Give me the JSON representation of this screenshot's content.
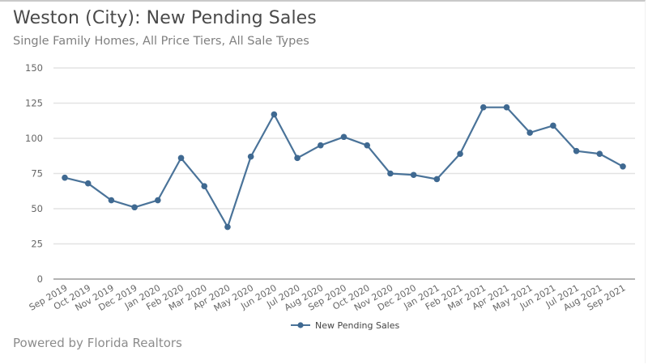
{
  "header": {
    "title": "Weston (City): New Pending Sales",
    "subtitle": "Single Family Homes, All Price Tiers, All Sale Types"
  },
  "footer": {
    "text": "Powered by Florida Realtors"
  },
  "colors": {
    "series": "#4a7399",
    "marker": "#3f6991",
    "grid": "#e3e3e3",
    "axis": "#9a9a9a"
  },
  "chart_data": {
    "type": "line",
    "title": "Weston (City): New Pending Sales",
    "subtitle": "Single Family Homes, All Price Tiers, All Sale Types",
    "xlabel": "",
    "ylabel": "",
    "ylim": [
      0,
      150
    ],
    "yticks": [
      0,
      25,
      50,
      75,
      100,
      125,
      150
    ],
    "grid": true,
    "legend_position": "bottom",
    "categories": [
      "Sep 2019",
      "Oct 2019",
      "Nov 2019",
      "Dec 2019",
      "Jan 2020",
      "Feb 2020",
      "Mar 2020",
      "Apr 2020",
      "May 2020",
      "Jun 2020",
      "Jul 2020",
      "Aug 2020",
      "Sep 2020",
      "Oct 2020",
      "Nov 2020",
      "Dec 2020",
      "Jan 2021",
      "Feb 2021",
      "Mar 2021",
      "Apr 2021",
      "May 2021",
      "Jun 2021",
      "Jul 2021",
      "Aug 2021",
      "Sep 2021"
    ],
    "series": [
      {
        "name": "New Pending Sales",
        "values": [
          72,
          68,
          56,
          51,
          56,
          86,
          66,
          37,
          87,
          117,
          86,
          95,
          101,
          95,
          75,
          74,
          71,
          89,
          122,
          122,
          104,
          109,
          91,
          89,
          80
        ]
      }
    ]
  }
}
